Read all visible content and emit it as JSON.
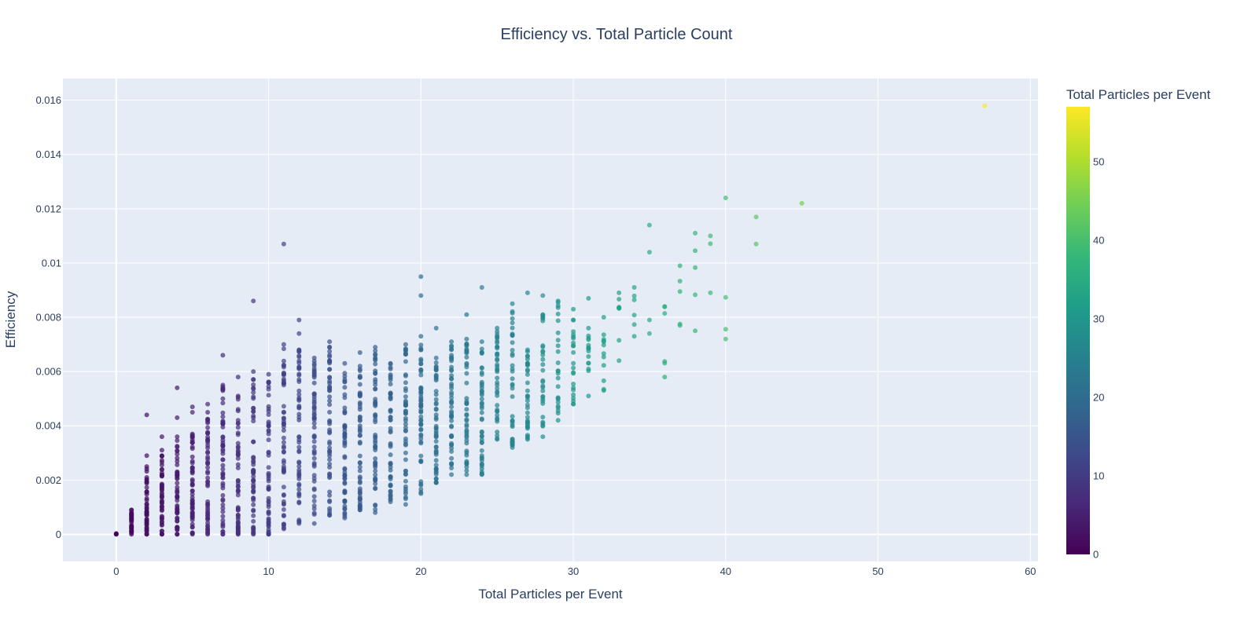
{
  "chart_data": {
    "type": "scatter",
    "title": "Efficiency vs. Total Particle Count",
    "xlabel": "Total Particles per Event",
    "ylabel": "Efficiency",
    "xlim": [
      -3.5,
      60.5
    ],
    "ylim": [
      -0.001,
      0.0168
    ],
    "x_ticks": [
      0,
      10,
      20,
      30,
      40,
      50,
      60
    ],
    "x_tick_labels": [
      "0",
      "10",
      "20",
      "30",
      "40",
      "50",
      "60"
    ],
    "y_ticks": [
      0,
      0.002,
      0.004,
      0.006,
      0.008,
      0.01,
      0.012,
      0.014,
      0.016
    ],
    "y_tick_labels": [
      "0",
      "0.002",
      "0.004",
      "0.006",
      "0.008",
      "0.01",
      "0.012",
      "0.014",
      "0.016"
    ],
    "grid": true,
    "colorbar": {
      "title": "Total Particles per Event",
      "colorscale": "Viridis",
      "range": [
        0,
        57
      ],
      "ticks": [
        0,
        10,
        20,
        30,
        40,
        50
      ],
      "tick_labels": [
        "0",
        "10",
        "20",
        "30",
        "40",
        "50"
      ]
    },
    "columns": [
      {
        "x": 0,
        "min": 0,
        "max": 3e-05,
        "n": 4
      },
      {
        "x": 1,
        "min": 0,
        "max": 0.0009,
        "n": 30
      },
      {
        "x": 2,
        "min": 0,
        "max": 0.0025,
        "n": 45,
        "outliers": [
          0.0029,
          0.0044
        ]
      },
      {
        "x": 3,
        "min": 0,
        "max": 0.0029,
        "n": 50,
        "outliers": [
          0.0031,
          0.0036
        ]
      },
      {
        "x": 4,
        "min": 0,
        "max": 0.0036,
        "n": 55,
        "outliers": [
          0.0043,
          0.0054
        ]
      },
      {
        "x": 5,
        "min": 0,
        "max": 0.0037,
        "n": 55,
        "outliers": [
          0.0045,
          0.0047
        ]
      },
      {
        "x": 6,
        "min": 0,
        "max": 0.0048,
        "n": 55
      },
      {
        "x": 7,
        "min": 0,
        "max": 0.0055,
        "n": 55,
        "outliers": [
          0.0066
        ]
      },
      {
        "x": 8,
        "min": 0,
        "max": 0.0051,
        "n": 55,
        "outliers": [
          0.0058
        ]
      },
      {
        "x": 9,
        "min": 0,
        "max": 0.006,
        "n": 55,
        "outliers": [
          0.0086
        ]
      },
      {
        "x": 10,
        "min": 0,
        "max": 0.0059,
        "n": 55
      },
      {
        "x": 11,
        "min": 0.0002,
        "max": 0.007,
        "n": 55,
        "outliers": [
          0.0107
        ]
      },
      {
        "x": 12,
        "min": 0.0004,
        "max": 0.0068,
        "n": 55,
        "outliers": [
          0.0074,
          0.0079
        ]
      },
      {
        "x": 13,
        "min": 0.0004,
        "max": 0.0065,
        "n": 55
      },
      {
        "x": 14,
        "min": 0.0007,
        "max": 0.0071,
        "n": 55
      },
      {
        "x": 15,
        "min": 0.0006,
        "max": 0.0063,
        "n": 55
      },
      {
        "x": 16,
        "min": 0.0009,
        "max": 0.0067,
        "n": 55
      },
      {
        "x": 17,
        "min": 0.0008,
        "max": 0.0069,
        "n": 55
      },
      {
        "x": 18,
        "min": 0.0012,
        "max": 0.0063,
        "n": 50
      },
      {
        "x": 19,
        "min": 0.0011,
        "max": 0.007,
        "n": 50
      },
      {
        "x": 20,
        "min": 0.0015,
        "max": 0.0073,
        "n": 55,
        "outliers": [
          0.0088,
          0.0095
        ]
      },
      {
        "x": 21,
        "min": 0.0019,
        "max": 0.0065,
        "n": 50,
        "outliers": [
          0.0076
        ]
      },
      {
        "x": 22,
        "min": 0.0022,
        "max": 0.0071,
        "n": 50
      },
      {
        "x": 23,
        "min": 0.0022,
        "max": 0.0072,
        "n": 45,
        "outliers": [
          0.0081
        ]
      },
      {
        "x": 24,
        "min": 0.0022,
        "max": 0.0071,
        "n": 45,
        "outliers": [
          0.0091
        ]
      },
      {
        "x": 25,
        "min": 0.0035,
        "max": 0.0076,
        "n": 40
      },
      {
        "x": 26,
        "min": 0.0032,
        "max": 0.0085,
        "n": 40
      },
      {
        "x": 27,
        "min": 0.0035,
        "max": 0.0068,
        "n": 35,
        "outliers": [
          0.0089
        ]
      },
      {
        "x": 28,
        "min": 0.0036,
        "max": 0.0081,
        "n": 30,
        "outliers": [
          0.0088
        ]
      },
      {
        "x": 29,
        "min": 0.0042,
        "max": 0.0086,
        "n": 25
      },
      {
        "x": 30,
        "min": 0.0048,
        "max": 0.0079,
        "n": 22,
        "outliers": [
          0.0083
        ]
      },
      {
        "x": 31,
        "min": 0.0051,
        "max": 0.0076,
        "n": 15,
        "outliers": [
          0.0087
        ]
      },
      {
        "x": 32,
        "min": 0.0053,
        "max": 0.008,
        "n": 12
      },
      {
        "x": 33,
        "min": 0.0064,
        "max": 0.0089,
        "n": 8
      },
      {
        "x": 34,
        "min": 0.0073,
        "max": 0.0091,
        "n": 6
      },
      {
        "x": 35,
        "min": 0.0074,
        "max": 0.0079,
        "n": 2,
        "outliers": [
          0.0104,
          0.0114
        ]
      },
      {
        "x": 36,
        "min": 0.0058,
        "max": 0.0084,
        "n": 6
      },
      {
        "x": 37,
        "min": 0.0077,
        "max": 0.0099,
        "n": 5
      },
      {
        "x": 38,
        "min": 0.0075,
        "max": 0.0111,
        "n": 5
      },
      {
        "x": 39,
        "min": 0.0089,
        "max": 0.011,
        "n": 3
      },
      {
        "x": 40,
        "min": 0.0072,
        "max": 0.0124,
        "n": 4
      },
      {
        "x": 42,
        "min": 0.0107,
        "max": 0.0117,
        "n": 2
      },
      {
        "x": 45,
        "min": 0.0122,
        "max": 0.0122,
        "n": 1
      },
      {
        "x": 57,
        "min": 0.0158,
        "max": 0.0158,
        "n": 1
      }
    ]
  }
}
